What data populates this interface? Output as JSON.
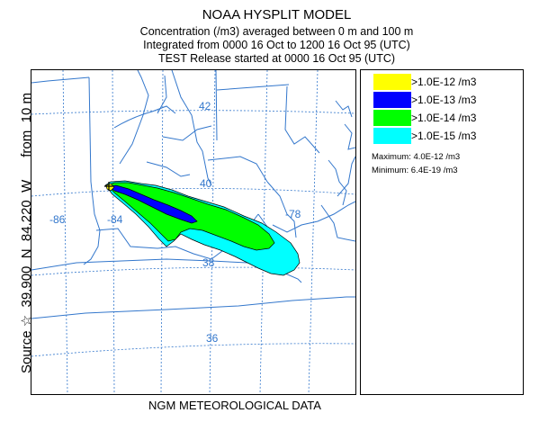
{
  "header": {
    "model": "NOAA HYSPLIT MODEL",
    "concentration_line": "Concentration  (/m3) averaged between      0 m and   100 m",
    "integration_line": "Integrated from 0000 16 Oct to 1200 16 Oct 95 (UTC)",
    "release_line": "TEST Release started at 0000 16 Oct 95 (UTC)"
  },
  "side_label": "Source ☆  39.900  N  84.220  W      from  10 m",
  "source": {
    "lat": 39.9,
    "lon": -84.22
  },
  "footer": "NGM  METEOROLOGICAL DATA",
  "map_labels": {
    "lat_42": "42",
    "lat_40": "40",
    "lat_38": "38",
    "lat_36": "36",
    "lon_86": "-86",
    "lon_84": "-84",
    "lon_78": "-78"
  },
  "legend": {
    "items": [
      {
        "label": ">1.0E-12 /m3",
        "color": "#ffff00"
      },
      {
        "label": ">1.0E-13 /m3",
        "color": "#0000ff"
      },
      {
        "label": ">1.0E-14 /m3",
        "color": "#00ff00"
      },
      {
        "label": ">1.0E-15 /m3",
        "color": "#00ffff"
      }
    ],
    "maximum": "Maximum: 4.0E-12 /m3",
    "minimum": "Minimum: 6.4E-19 /m3"
  },
  "colors": {
    "border": "#3377cc",
    "grid": "#3377cc",
    "contour": "#000000"
  }
}
